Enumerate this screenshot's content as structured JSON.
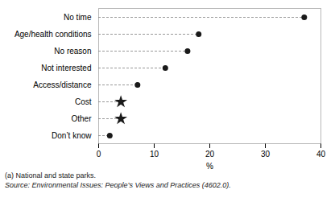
{
  "chart_data": {
    "type": "lollipop",
    "orientation": "horizontal",
    "categories": [
      "No time",
      "Age/health conditions",
      "No reason",
      "Not interested",
      "Access/distance",
      "Cost",
      "Other",
      "Don’t know"
    ],
    "values": [
      37.0,
      18.0,
      16.0,
      12.0,
      7.0,
      4.0,
      4.0,
      2.0
    ],
    "markers": [
      "circle",
      "circle",
      "circle",
      "circle",
      "circle",
      "star",
      "star",
      "circle"
    ],
    "color": "#1a1a1a",
    "line_style": "dashed",
    "xlim": [
      0,
      40
    ],
    "xticks": [
      0,
      10,
      20,
      30,
      40
    ],
    "xlabel": "%",
    "grid": false,
    "annotations": [
      "(a) National and state parks.",
      "Source: Environmental Issues: People’s Views and Practices (4602.0)."
    ]
  }
}
